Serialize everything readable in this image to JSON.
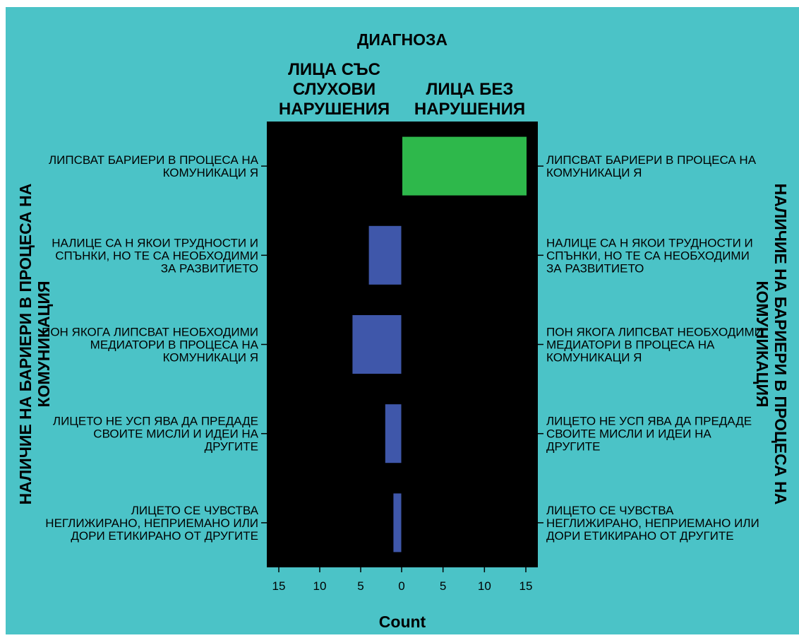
{
  "chart_data": {
    "type": "bar",
    "orientation": "horizontal",
    "title": "ДИАГНОЗА",
    "panels": [
      {
        "name": [
          "ЛИЦА СЪС",
          "СЛУХОВИ",
          "НАРУШЕНИЯ"
        ],
        "color": "#3f57aa",
        "values": [
          0,
          4,
          6,
          2,
          1
        ]
      },
      {
        "name": [
          "ЛИЦА БЕЗ",
          "НАРУШЕНИЯ"
        ],
        "color": "#2eb84b",
        "values": [
          15,
          0,
          0,
          0,
          0
        ]
      }
    ],
    "categories": [
      [
        "ЛИПСВАТ БАРИЕРИ В ПРОЦЕСА НА",
        "КОМУНИКАЦИ Я"
      ],
      [
        "НАЛИЦЕ СА Н ЯКОИ ТРУДНОСТИ И",
        "СПЪНКИ, НО ТЕ СА НЕОБХОДИМИ",
        "ЗА РАЗВИТИЕТО"
      ],
      [
        "ПОН ЯКОГА ЛИПСВАТ НЕОБХОДИМИ",
        "МЕДИАТОРИ В ПРОЦЕСА НА",
        "КОМУНИКАЦИ Я"
      ],
      [
        "ЛИЦЕТО НЕ УСП ЯВА ДА ПРЕДАДЕ",
        "СВОИТЕ МИСЛИ И ИДЕИ НА",
        "ДРУГИТЕ"
      ],
      [
        "ЛИЦЕТО СЕ ЧУВСТВА",
        "НЕГЛИЖИРАНО, НЕПРИЕМАНО ИЛИ",
        "ДОРИ ЕТИКИРАНО ОТ ДРУГИТЕ"
      ]
    ],
    "ylabel": [
      "НАЛИЧИЕ НА БАРИЕРИ В ПРОЦЕСА НА",
      "КОМУНИКАЦИЯ"
    ],
    "xlabel": "Count",
    "xlim": [
      0,
      15
    ],
    "xticks": [
      "15",
      "10",
      "5",
      "0",
      "5",
      "10",
      "15"
    ],
    "grid": false,
    "colors": {
      "page_background": "#4bc3c7",
      "plot_background": "#000000"
    }
  }
}
